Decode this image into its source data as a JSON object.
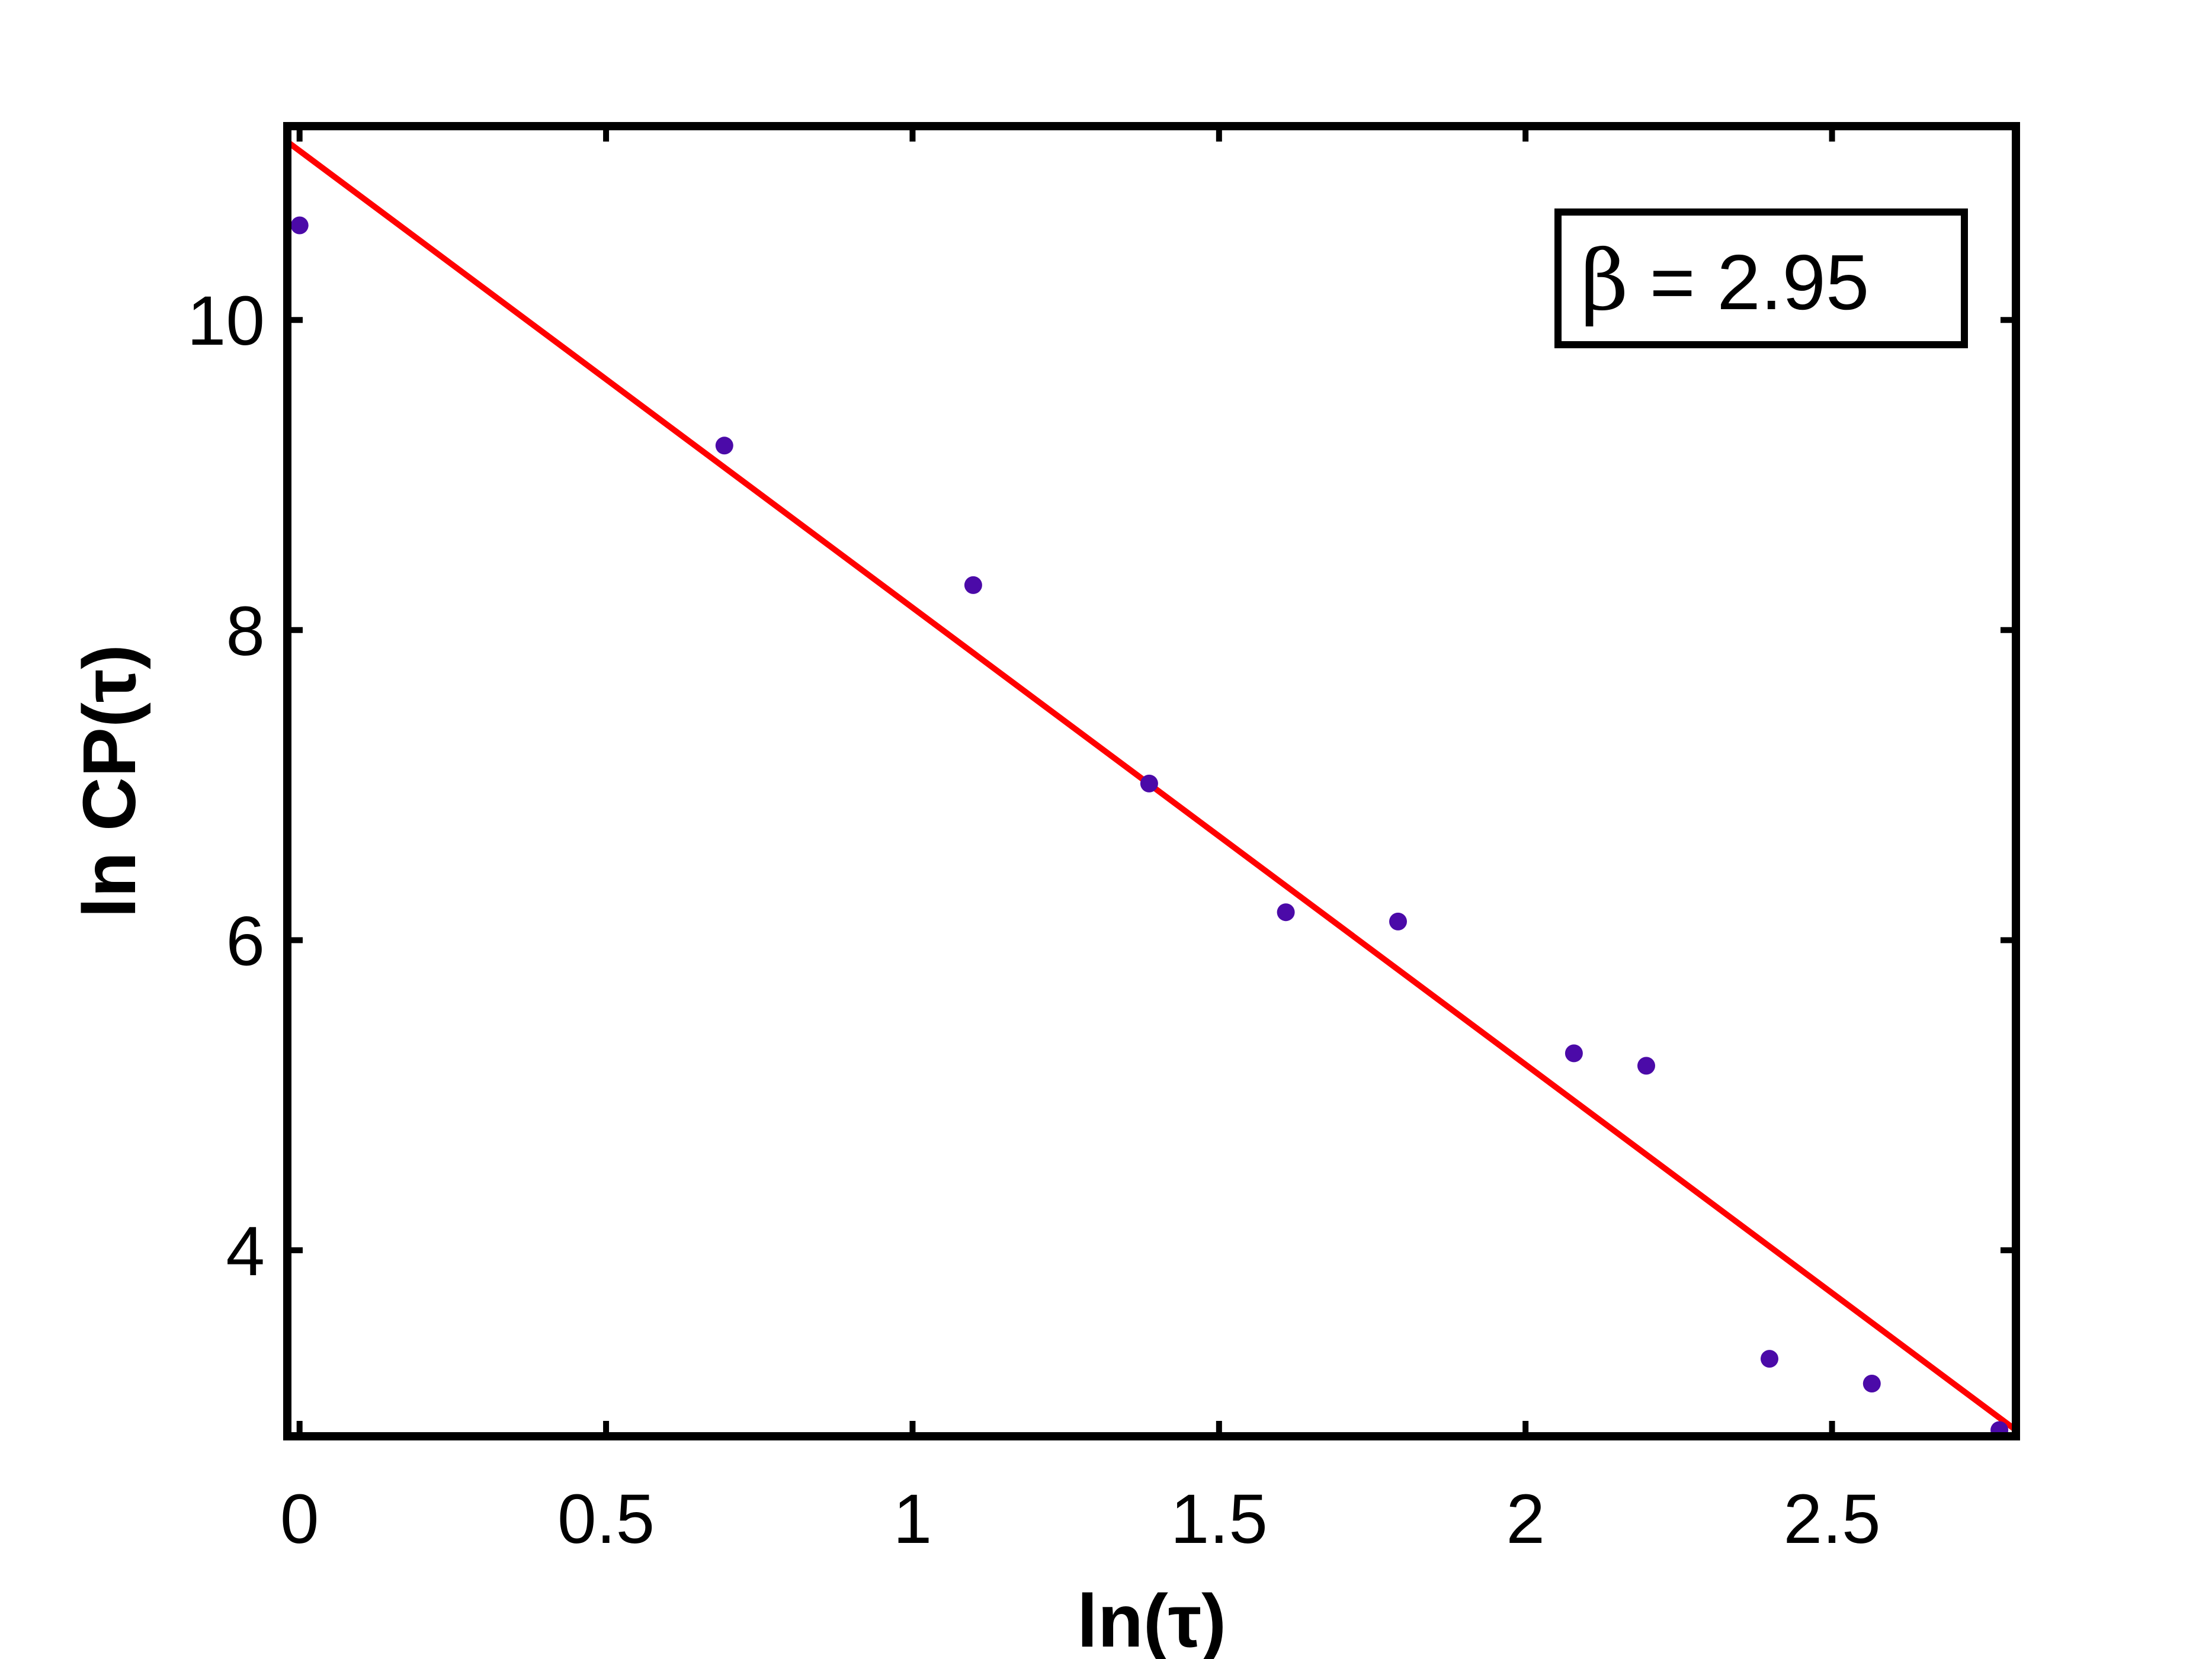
{
  "chart_data": {
    "type": "scatter",
    "title": "",
    "xlabel": "ln(τ)",
    "ylabel": "ln CP(τ)",
    "xlim": [
      -0.02,
      2.8
    ],
    "ylim": [
      2.8,
      11.25
    ],
    "xticks": [
      0,
      0.5,
      1,
      1.5,
      2,
      2.5
    ],
    "xtick_labels": [
      "0",
      "0.5",
      "1",
      "1.5",
      "2",
      "2.5"
    ],
    "yticks": [
      4,
      6,
      8,
      10
    ],
    "ytick_labels": [
      "4",
      "6",
      "8",
      "10"
    ],
    "grid": false,
    "series": [
      {
        "type": "scatter",
        "color": "#4b0aa8",
        "x": [
          0.0,
          0.693,
          1.099,
          1.386,
          1.609,
          1.792,
          2.079,
          2.197,
          2.398,
          2.565,
          2.773
        ],
        "y": [
          10.61,
          9.19,
          8.29,
          7.01,
          6.18,
          6.12,
          5.27,
          5.19,
          3.3,
          3.14,
          2.84
        ]
      },
      {
        "type": "line",
        "color": "#ff0000",
        "x": [
          -0.02,
          2.8
        ],
        "y": [
          11.15,
          2.84
        ]
      }
    ],
    "legend": {
      "placement": "top-right",
      "symbol": "β",
      "text": " = 2.95"
    }
  }
}
